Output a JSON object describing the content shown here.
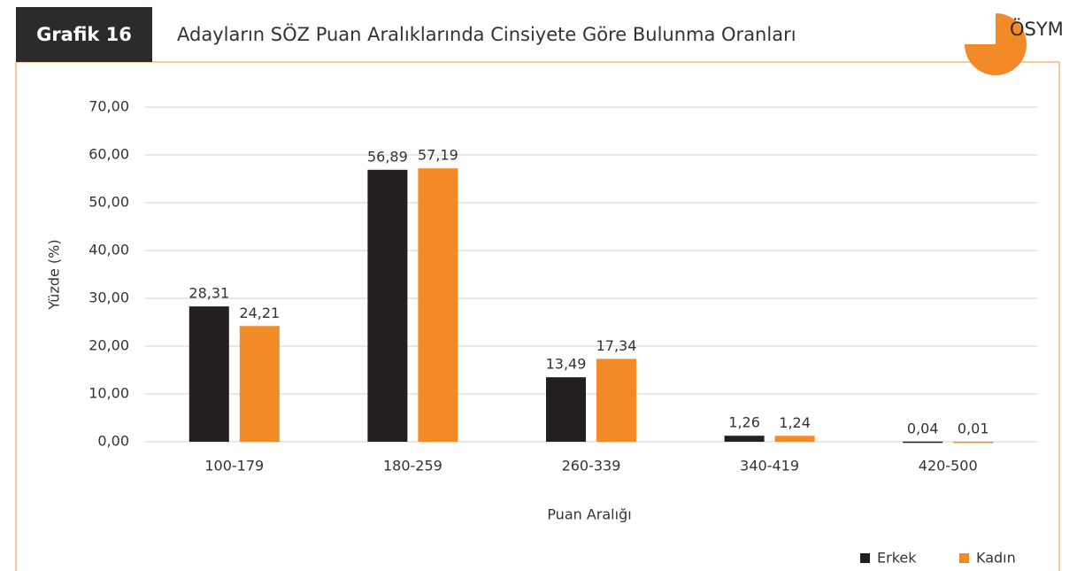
{
  "header": {
    "badge": "Grafik 16",
    "logo": "ÖSYM"
  },
  "chart_data": {
    "type": "bar",
    "title": "Adayların SÖZ Puan Aralıklarında Cinsiyete Göre Bulunma Oranları",
    "y_label": "Yüzde (%)",
    "x_label": "Puan Aralığı",
    "categories": [
      "100-179",
      "180-259",
      "260-339",
      "340-419",
      "420-500"
    ],
    "series": [
      {
        "name": "Erkek",
        "color": "#231f20",
        "values": [
          28.31,
          56.89,
          13.49,
          1.26,
          0.04
        ],
        "value_labels": [
          "28,31",
          "56,89",
          "13,49",
          "1,26",
          "0,04"
        ]
      },
      {
        "name": "Kadın",
        "color": "#f28a27",
        "values": [
          24.21,
          57.19,
          17.34,
          1.24,
          0.01
        ],
        "value_labels": [
          "24,21",
          "57,19",
          "17,34",
          "1,24",
          "0,01"
        ]
      }
    ],
    "ylim": [
      0,
      70
    ],
    "yticks": [
      {
        "value": 0,
        "label": "0,00"
      },
      {
        "value": 10,
        "label": "10,00"
      },
      {
        "value": 20,
        "label": "20,00"
      },
      {
        "value": 30,
        "label": "30,00"
      },
      {
        "value": 40,
        "label": "40,00"
      },
      {
        "value": 50,
        "label": "50,00"
      },
      {
        "value": 60,
        "label": "60,00"
      },
      {
        "value": 70,
        "label": "70,00"
      }
    ],
    "grid": true,
    "legend": "bottom-right"
  }
}
